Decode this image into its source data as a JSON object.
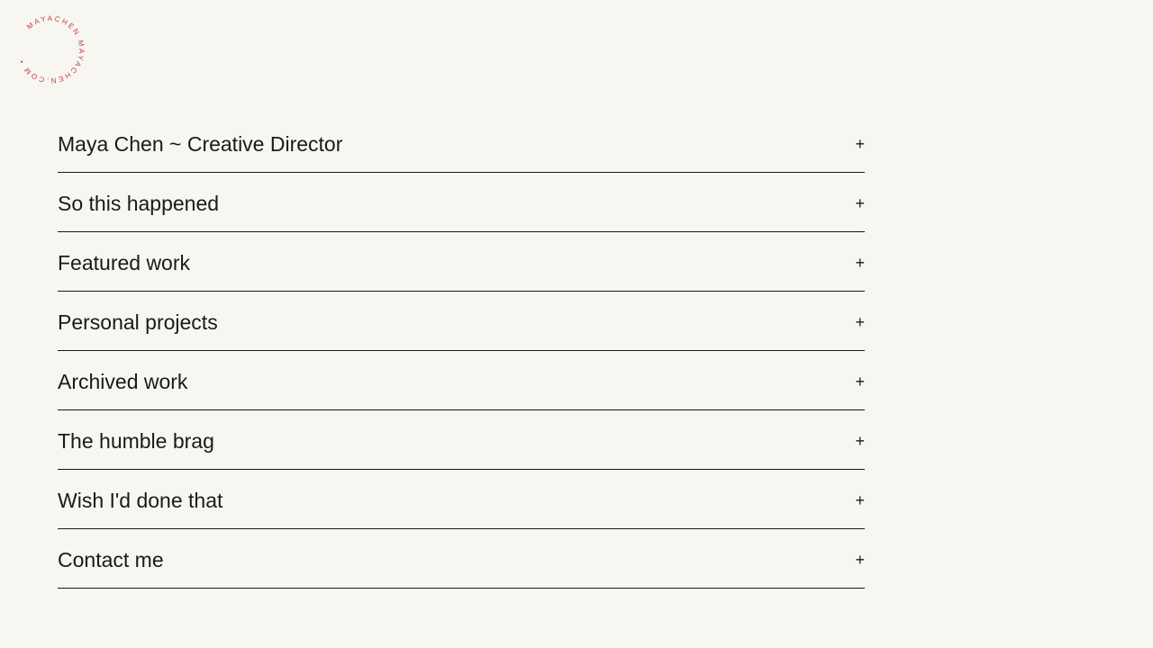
{
  "logo": {
    "text": "MAYACHEN MAYACHEN.COM • ",
    "color": "#c8383a"
  },
  "menu": {
    "items": [
      {
        "label": "Maya Chen ~ Creative Director",
        "icon": "plus-icon",
        "toggle": "+"
      },
      {
        "label": "So this happened",
        "icon": "plus-icon",
        "toggle": "+"
      },
      {
        "label": "Featured work",
        "icon": "plus-icon",
        "toggle": "+"
      },
      {
        "label": "Personal projects",
        "icon": "plus-icon",
        "toggle": "+"
      },
      {
        "label": "Archived work",
        "icon": "plus-icon",
        "toggle": "+"
      },
      {
        "label": "The humble brag",
        "icon": "plus-icon",
        "toggle": "+"
      },
      {
        "label": "Wish I'd done that",
        "icon": "plus-icon",
        "toggle": "+"
      },
      {
        "label": "Contact me",
        "icon": "plus-icon",
        "toggle": "+"
      }
    ]
  }
}
